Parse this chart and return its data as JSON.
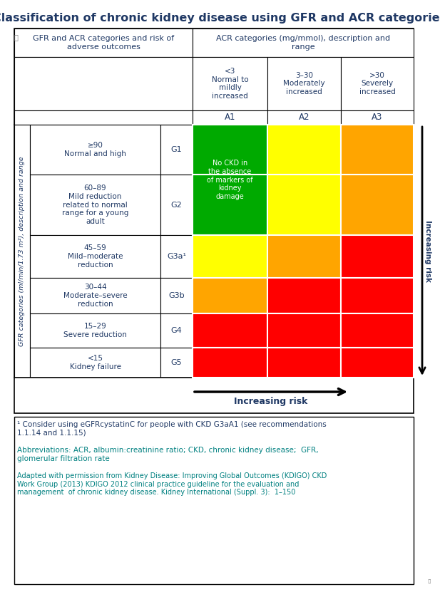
{
  "title": "Classification of chronic kidney disease using GFR and ACR categories",
  "title_color": "#1F3864",
  "header1_text": "GFR and ACR categories and risk of\nadverse outcomes",
  "header2_text": "ACR categories (mg/mmol), description and\nrange",
  "acr_col_headers": [
    "<3\nNormal to\nmildly\nincreased",
    "3–30\nModerately\nincreased",
    ">30\nSeverely\nincreased"
  ],
  "acr_labels": [
    "A1",
    "A2",
    "A3"
  ],
  "gfr_rows": [
    {
      "range": "≥90\nNormal and high",
      "label": "G1"
    },
    {
      "range": "60–89\nMild reduction\nrelated to normal\nrange for a young\nadult",
      "label": "G2"
    },
    {
      "range": "45–59\nMild–moderate\nreduction",
      "label": "G3a¹"
    },
    {
      "range": "30–44\nModerate–severe\nreduction",
      "label": "G3b"
    },
    {
      "range": "15–29\nSevere reduction",
      "label": "G4"
    },
    {
      "range": "<15\nKidney failure",
      "label": "G5"
    }
  ],
  "cell_colors": [
    [
      "#00AA00",
      "#FFFF00",
      "#FFA500"
    ],
    [
      "#00AA00",
      "#FFFF00",
      "#FFA500"
    ],
    [
      "#FFFF00",
      "#FFA500",
      "#FF0000"
    ],
    [
      "#FFA500",
      "#FF0000",
      "#FF0000"
    ],
    [
      "#FF0000",
      "#FF0000",
      "#FF0000"
    ],
    [
      "#FF0000",
      "#FF0000",
      "#FF0000"
    ]
  ],
  "green_text": "No CKD in\nthe absence\nof markers of\nkidney\ndamage",
  "gfr_axis_label": "GFR categories (ml/min/1.73 m²), description and range",
  "increasing_risk_right": "Increasing risk",
  "increasing_risk_bottom": "Increasing risk",
  "footnote": "¹ Consider using eGFRcystatinC for people with CKD G3aA1 (see recommendations\n1.1.14 and 1.1.15)",
  "abbrev": "Abbreviations: ACR, albumin:creatinine ratio; CKD, chronic kidney disease;  GFR,\nglomerular filtration rate",
  "adapted": "Adapted with permission from Kidney Disease: Improving Global Outcomes (KDIGO) CKD\nWork Group (2013) KDIGO 2012 clinical practice guideline for the evaluation and\nmanagement  of chronic kidney disease. Kidney International (Suppl. 3):  1–150",
  "text_dark_blue": "#1F3864",
  "text_teal": "#008080",
  "bg_white": "#FFFFFF",
  "fig_width": 6.17,
  "fig_height": 8.38
}
